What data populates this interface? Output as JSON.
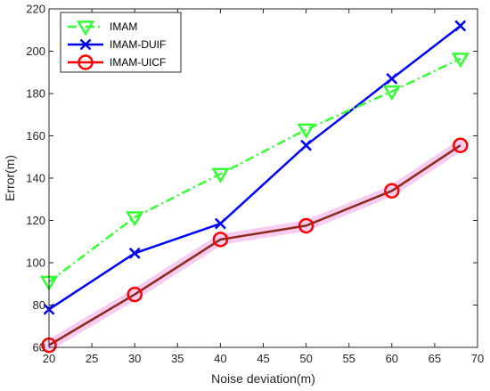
{
  "chart_data": {
    "type": "line",
    "title": "",
    "xlabel": "Noise deviation(m)",
    "ylabel": "Error(m)",
    "xlim": [
      20,
      70
    ],
    "ylim": [
      60,
      220
    ],
    "xticks": [
      20,
      25,
      30,
      35,
      40,
      45,
      50,
      55,
      60,
      65,
      70
    ],
    "yticks": [
      60,
      80,
      100,
      120,
      140,
      160,
      180,
      200,
      220
    ],
    "grid": false,
    "legend_position": "top-left",
    "series": [
      {
        "name": "IMAM",
        "color": "#33ff33",
        "line_style": "dash-dot",
        "marker": "down-triangle",
        "x": [
          20,
          30,
          40,
          50,
          60,
          68
        ],
        "y": [
          91,
          121.5,
          142,
          163,
          181,
          196.5
        ]
      },
      {
        "name": "IMAM-DUIF",
        "color": "#0000ff",
        "line_style": "solid",
        "marker": "x",
        "x": [
          20,
          30,
          40,
          50,
          60,
          68
        ],
        "y": [
          78,
          104.5,
          118.5,
          155.5,
          187,
          212
        ]
      },
      {
        "name": "IMAM-UICF",
        "color": "#ff0000",
        "line_color": "#8b2a1a",
        "halo_color": "#f7c6f0",
        "line_style": "solid",
        "marker": "circle",
        "x": [
          20,
          30,
          40,
          50,
          60,
          68
        ],
        "y": [
          61,
          85,
          111,
          117.5,
          134,
          155.5
        ]
      }
    ]
  }
}
